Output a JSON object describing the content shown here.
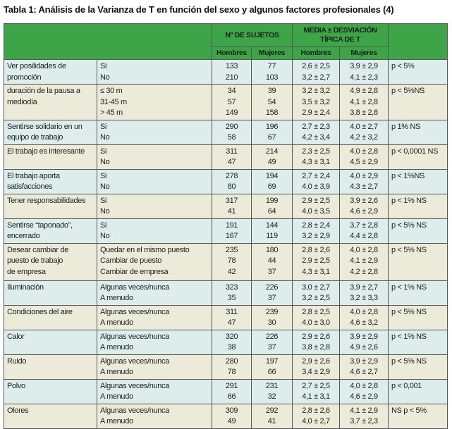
{
  "title": "Tabla 1: Análisis de la Varianza de T en función del sexo y algunos factores profesionales (4)",
  "header": {
    "group1": "Nº DE SUJETOS",
    "group2": "MEDIA ± DESVIACIÓN TÍPICA DE T",
    "sub": [
      "Hombres",
      "Mujeres",
      "Hombres",
      "Mujeres"
    ]
  },
  "colors": {
    "header": "#3da548",
    "row_blue": "#dcedec",
    "row_beige": "#ecebd9"
  },
  "rows": [
    {
      "label": [
        "Ver posilidades de",
        "promoción"
      ],
      "options": [
        "Si",
        "No"
      ],
      "n_h": [
        "133",
        "210"
      ],
      "n_m": [
        "77",
        "103"
      ],
      "t_h": [
        "2,6 ± 2,5",
        "3,2 ± 2,7"
      ],
      "t_m": [
        "3,9 ± 2,9",
        "4,1 ± 2,3"
      ],
      "p": "p < 5%"
    },
    {
      "label": [
        "duración de la pausa a",
        "mediodía"
      ],
      "options": [
        "≤ 30 m",
        "31-45 m",
        "> 45 m"
      ],
      "n_h": [
        "34",
        "57",
        "149"
      ],
      "n_m": [
        "39",
        "54",
        "158"
      ],
      "t_h": [
        "3,2 ± 3,2",
        "3,5 ± 3,2",
        "2,9 ± 2,4"
      ],
      "t_m": [
        "4,9 ± 2,8",
        "4,1 ± 2,8",
        "3,8 ± 2,8"
      ],
      "p": "p < 5%NS"
    },
    {
      "label": [
        "Sentirse solidario en un",
        "equipo de trabajo"
      ],
      "options": [
        "Si",
        "No"
      ],
      "n_h": [
        "290",
        "58"
      ],
      "n_m": [
        "196",
        "67"
      ],
      "t_h": [
        "2,7 ± 2,3",
        "4,2 ± 3,4"
      ],
      "t_m": [
        "4,0 ± 2,7",
        "4,2 ± 3,2"
      ],
      "p": "p 1% NS"
    },
    {
      "label": [
        "El trabajo es interesante"
      ],
      "options": [
        "Si",
        "No"
      ],
      "n_h": [
        "311",
        "47"
      ],
      "n_m": [
        "214",
        "49"
      ],
      "t_h": [
        "2,3 ± 2,5",
        "4,3 ± 3,1"
      ],
      "t_m": [
        "4,0 ± 2,8",
        "4,5 ± 2,9"
      ],
      "p": "p < 0,0001 NS"
    },
    {
      "label": [
        "El trabajo aporta",
        "satisfacciones"
      ],
      "options": [
        "Si",
        "No"
      ],
      "n_h": [
        "278",
        "80"
      ],
      "n_m": [
        "194",
        "69"
      ],
      "t_h": [
        "2,7 ± 2,4",
        "4,0 ± 3,9"
      ],
      "t_m": [
        "4,0 ± 2,9",
        "4,3 ± 2,7"
      ],
      "p": "p < 1%NS"
    },
    {
      "label": [
        "Tener responsabilidades"
      ],
      "options": [
        "Si",
        "No"
      ],
      "n_h": [
        "317",
        "41"
      ],
      "n_m": [
        "199",
        "64"
      ],
      "t_h": [
        "2,9 ± 2,5",
        "4,0 ± 3,5"
      ],
      "t_m": [
        "3,9 ± 2,6",
        "4,6 ± 2,9"
      ],
      "p": "p < 1% NS"
    },
    {
      "label": [
        "Sentirse “taponado”,",
        "encerrado"
      ],
      "options": [
        "Si",
        "No"
      ],
      "n_h": [
        "191",
        "167"
      ],
      "n_m": [
        "144",
        "119"
      ],
      "t_h": [
        "2,8 ± 2,4",
        "3,2 ± 2,9"
      ],
      "t_m": [
        "3,7 ± 2,8",
        "4,4 ± 2,8"
      ],
      "p": "p < 5% NS"
    },
    {
      "label": [
        "Desear cambiar de",
        "puesto de trabajo",
        "de empresa"
      ],
      "options": [
        "Quedar en el mismo puesto",
        "Cambiar de puesto",
        "Cambiar de empresa"
      ],
      "n_h": [
        "235",
        "78",
        "42"
      ],
      "n_m": [
        "180",
        "44",
        "37"
      ],
      "t_h": [
        "2,8 ± 2,6",
        "2,9 ± 2,5",
        "4,3 ± 3,1"
      ],
      "t_m": [
        "4,0 ± 2,8",
        "4,1 ± 2,9",
        "4,2 ± 2,8"
      ],
      "p": "p < 5% NS"
    },
    {
      "label": [
        "Iluminación"
      ],
      "options": [
        "Algunas veces/nunca",
        "A menudo"
      ],
      "n_h": [
        "323",
        "35"
      ],
      "n_m": [
        "226",
        "37"
      ],
      "t_h": [
        "3,0 ± 2,7",
        "3,2 ± 2,5"
      ],
      "t_m": [
        "3,9 ± 2,7",
        "3,2 ± 3,3"
      ],
      "p": "p < 1% NS"
    },
    {
      "label": [
        "Condiciones del aire"
      ],
      "options": [
        "Algunas veces/nunca",
        "A menudo"
      ],
      "n_h": [
        "311",
        "47"
      ],
      "n_m": [
        "239",
        "30"
      ],
      "t_h": [
        "2,8 ± 2,5",
        "4,0 ± 3,0"
      ],
      "t_m": [
        "4,0 ± 2,8",
        "4,6 ± 3,2"
      ],
      "p": "p < 5% NS"
    },
    {
      "label": [
        "Calor"
      ],
      "options": [
        "Algunas veces/nunca",
        "A menudo"
      ],
      "n_h": [
        "320",
        "38"
      ],
      "n_m": [
        "226",
        "37"
      ],
      "t_h": [
        "2,9 ± 2,6",
        "3,8 ± 2,8"
      ],
      "t_m": [
        "3,9 ± 2,9",
        "4,9 ± 2,6"
      ],
      "p": "p < 1% NS"
    },
    {
      "label": [
        "Ruido"
      ],
      "options": [
        "Algunas veces/nunca",
        "A menudo"
      ],
      "n_h": [
        "280",
        "78"
      ],
      "n_m": [
        "197",
        "66"
      ],
      "t_h": [
        "2,9 ± 2,6",
        "3,4 ± 2,9"
      ],
      "t_m": [
        "3,9 ± 2,9",
        "4,6 ± 2,7"
      ],
      "p": "p < 5% NS"
    },
    {
      "label": [
        "Polvo"
      ],
      "options": [
        "Algunas veces/nunca",
        "A menudo"
      ],
      "n_h": [
        "291",
        "66"
      ],
      "n_m": [
        "231",
        "32"
      ],
      "t_h": [
        "2,7 ± 2,5",
        "4,1 ± 3,1"
      ],
      "t_m": [
        "4,0 ± 2,8",
        "4,6 ± 2,9"
      ],
      "p": "p < 0,001"
    },
    {
      "label": [
        "Olores"
      ],
      "options": [
        "Algunas veces/nunca",
        "A menudo"
      ],
      "n_h": [
        "309",
        "49"
      ],
      "n_m": [
        "292",
        "41"
      ],
      "t_h": [
        "2,8 ± 2,6",
        "4,0 ± 2,7"
      ],
      "t_m": [
        "4,1 ± 2,9",
        "3,7 ± 2,3"
      ],
      "p": "NS p < 5%"
    }
  ]
}
